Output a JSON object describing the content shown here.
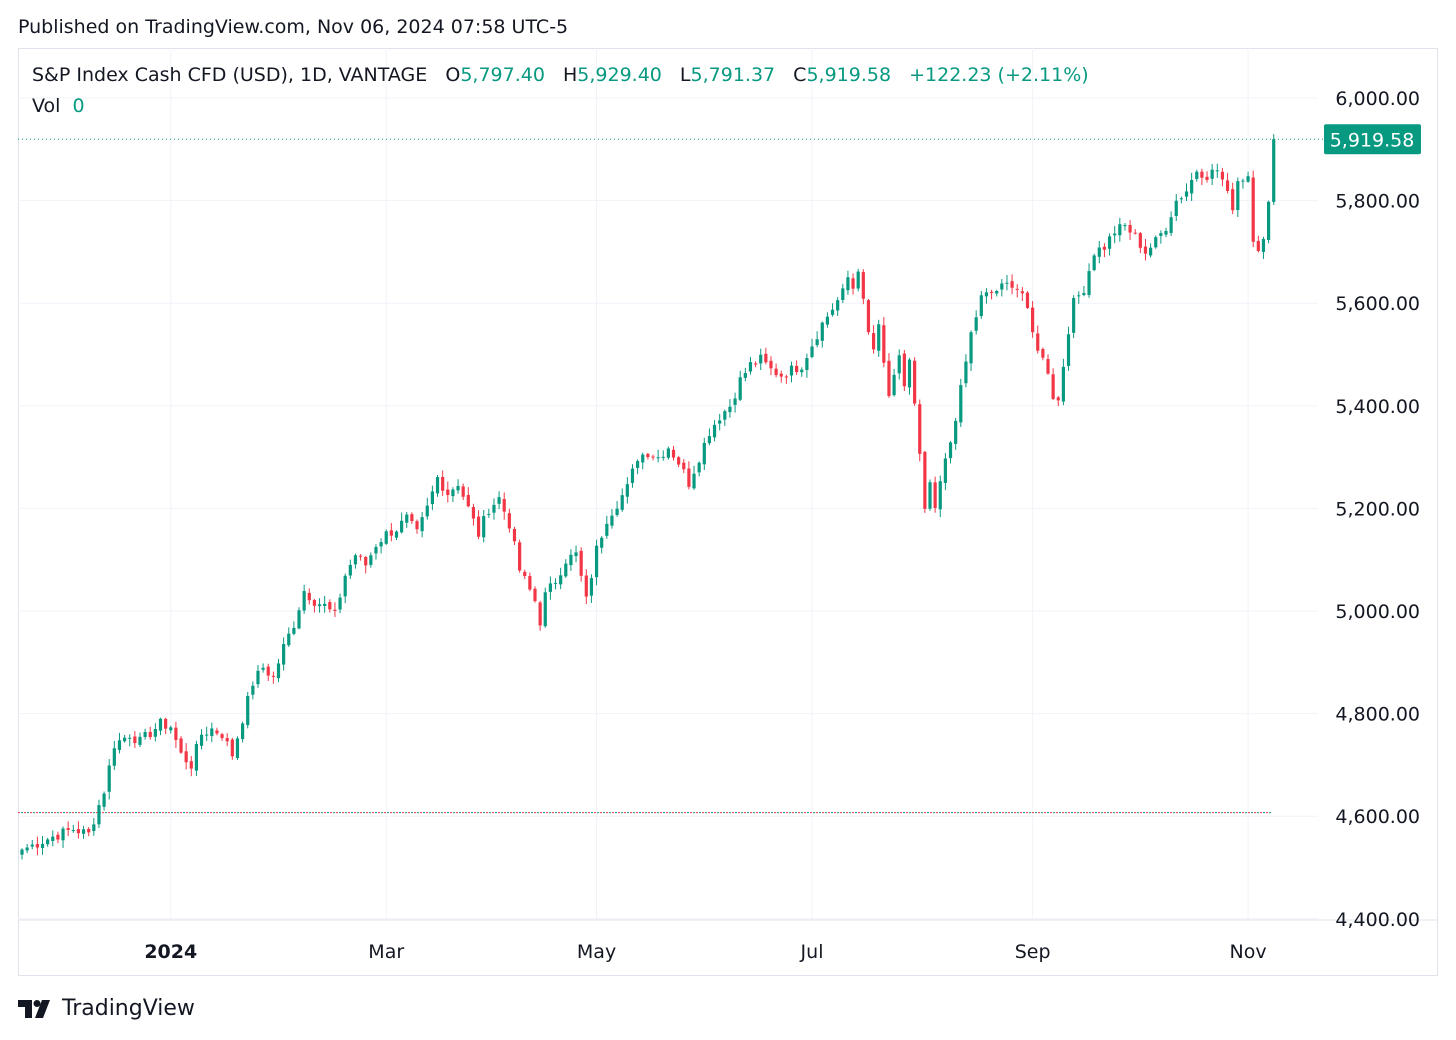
{
  "header": {
    "published": "Published on TradingView.com, Nov 06, 2024 07:58 UTC-5"
  },
  "legend": {
    "symbol": "S&P Index Cash CFD (USD), 1D, VANTAGE",
    "o_label": "O",
    "o_value": "5,797.40",
    "h_label": "H",
    "h_value": "5,929.40",
    "l_label": "L",
    "l_value": "5,791.37",
    "c_label": "C",
    "c_value": "5,919.58",
    "change": "+122.23 (+2.11%)",
    "vol_label": "Vol",
    "vol_value": "0"
  },
  "price_badge": "5,919.58",
  "footer": {
    "brand": "TradingView"
  },
  "colors": {
    "up": "#089981",
    "down": "#f23645",
    "grid": "#f0f3fa",
    "badge": "#089981"
  },
  "chart_data": {
    "type": "candlestick",
    "y_ticks": [
      "6,000.00",
      "5,800.00",
      "5,600.00",
      "5,400.00",
      "5,200.00",
      "5,000.00",
      "4,800.00",
      "4,600.00",
      "4,400.00"
    ],
    "y_tick_values": [
      6000,
      5800,
      5600,
      5400,
      5200,
      5000,
      4800,
      4600,
      4400
    ],
    "ylim": [
      4400,
      6030
    ],
    "x_ticks": [
      {
        "label": "2024",
        "bar": 29,
        "bold": true
      },
      {
        "label": "Mar",
        "bar": 71
      },
      {
        "label": "May",
        "bar": 112
      },
      {
        "label": "Jul",
        "bar": 154
      },
      {
        "label": "Sep",
        "bar": 197
      },
      {
        "label": "Nov",
        "bar": 239
      }
    ],
    "last_price": 5919.58,
    "reference_price": 4607,
    "anchors": [
      [
        0,
        4535
      ],
      [
        6,
        4560
      ],
      [
        10,
        4575
      ],
      [
        13,
        4565
      ],
      [
        16,
        4650
      ],
      [
        18,
        4740
      ],
      [
        21,
        4760
      ],
      [
        23,
        4745
      ],
      [
        27,
        4780
      ],
      [
        29,
        4775
      ],
      [
        31,
        4720
      ],
      [
        33,
        4700
      ],
      [
        35,
        4760
      ],
      [
        37,
        4770
      ],
      [
        39,
        4760
      ],
      [
        41,
        4720
      ],
      [
        43,
        4790
      ],
      [
        45,
        4860
      ],
      [
        47,
        4890
      ],
      [
        49,
        4870
      ],
      [
        51,
        4930
      ],
      [
        53,
        4975
      ],
      [
        55,
        5040
      ],
      [
        57,
        5020
      ],
      [
        59,
        5010
      ],
      [
        61,
        4990
      ],
      [
        63,
        5070
      ],
      [
        65,
        5110
      ],
      [
        67,
        5090
      ],
      [
        69,
        5130
      ],
      [
        71,
        5150
      ],
      [
        73,
        5160
      ],
      [
        75,
        5180
      ],
      [
        77,
        5150
      ],
      [
        79,
        5200
      ],
      [
        81,
        5260
      ],
      [
        83,
        5230
      ],
      [
        85,
        5250
      ],
      [
        87,
        5200
      ],
      [
        89,
        5150
      ],
      [
        91,
        5200
      ],
      [
        93,
        5220
      ],
      [
        95,
        5170
      ],
      [
        97,
        5080
      ],
      [
        99,
        5040
      ],
      [
        100,
        5020
      ],
      [
        101,
        4980
      ],
      [
        102,
        5030
      ],
      [
        104,
        5060
      ],
      [
        106,
        5100
      ],
      [
        108,
        5110
      ],
      [
        110,
        5020
      ],
      [
        112,
        5120
      ],
      [
        114,
        5180
      ],
      [
        116,
        5210
      ],
      [
        118,
        5240
      ],
      [
        120,
        5300
      ],
      [
        122,
        5310
      ],
      [
        124,
        5300
      ],
      [
        126,
        5320
      ],
      [
        128,
        5290
      ],
      [
        130,
        5250
      ],
      [
        132,
        5300
      ],
      [
        134,
        5350
      ],
      [
        136,
        5380
      ],
      [
        138,
        5400
      ],
      [
        140,
        5450
      ],
      [
        142,
        5480
      ],
      [
        144,
        5490
      ],
      [
        146,
        5470
      ],
      [
        148,
        5460
      ],
      [
        150,
        5470
      ],
      [
        152,
        5480
      ],
      [
        154,
        5520
      ],
      [
        156,
        5560
      ],
      [
        158,
        5590
      ],
      [
        160,
        5620
      ],
      [
        161,
        5650
      ],
      [
        162,
        5630
      ],
      [
        163,
        5670
      ],
      [
        164,
        5600
      ],
      [
        165,
        5540
      ],
      [
        166,
        5510
      ],
      [
        167,
        5550
      ],
      [
        168,
        5480
      ],
      [
        169,
        5420
      ],
      [
        170,
        5450
      ],
      [
        171,
        5490
      ],
      [
        172,
        5440
      ],
      [
        173,
        5490
      ],
      [
        174,
        5400
      ],
      [
        175,
        5300
      ],
      [
        176,
        5190
      ],
      [
        177,
        5250
      ],
      [
        178,
        5190
      ],
      [
        179,
        5250
      ],
      [
        181,
        5330
      ],
      [
        183,
        5430
      ],
      [
        185,
        5540
      ],
      [
        187,
        5610
      ],
      [
        189,
        5620
      ],
      [
        191,
        5630
      ],
      [
        193,
        5640
      ],
      [
        195,
        5620
      ],
      [
        197,
        5540
      ],
      [
        199,
        5490
      ],
      [
        200,
        5470
      ],
      [
        201,
        5420
      ],
      [
        202,
        5410
      ],
      [
        203,
        5480
      ],
      [
        204,
        5550
      ],
      [
        205,
        5600
      ],
      [
        207,
        5630
      ],
      [
        209,
        5700
      ],
      [
        211,
        5710
      ],
      [
        213,
        5740
      ],
      [
        215,
        5750
      ],
      [
        217,
        5730
      ],
      [
        219,
        5700
      ],
      [
        221,
        5720
      ],
      [
        223,
        5750
      ],
      [
        225,
        5800
      ],
      [
        227,
        5820
      ],
      [
        229,
        5860
      ],
      [
        231,
        5850
      ],
      [
        233,
        5860
      ],
      [
        234,
        5840
      ],
      [
        235,
        5810
      ],
      [
        236,
        5790
      ],
      [
        237,
        5840
      ],
      [
        239,
        5850
      ],
      [
        240,
        5730
      ],
      [
        241,
        5710
      ],
      [
        242,
        5720
      ],
      [
        243,
        5790
      ],
      [
        244,
        5920
      ]
    ]
  }
}
